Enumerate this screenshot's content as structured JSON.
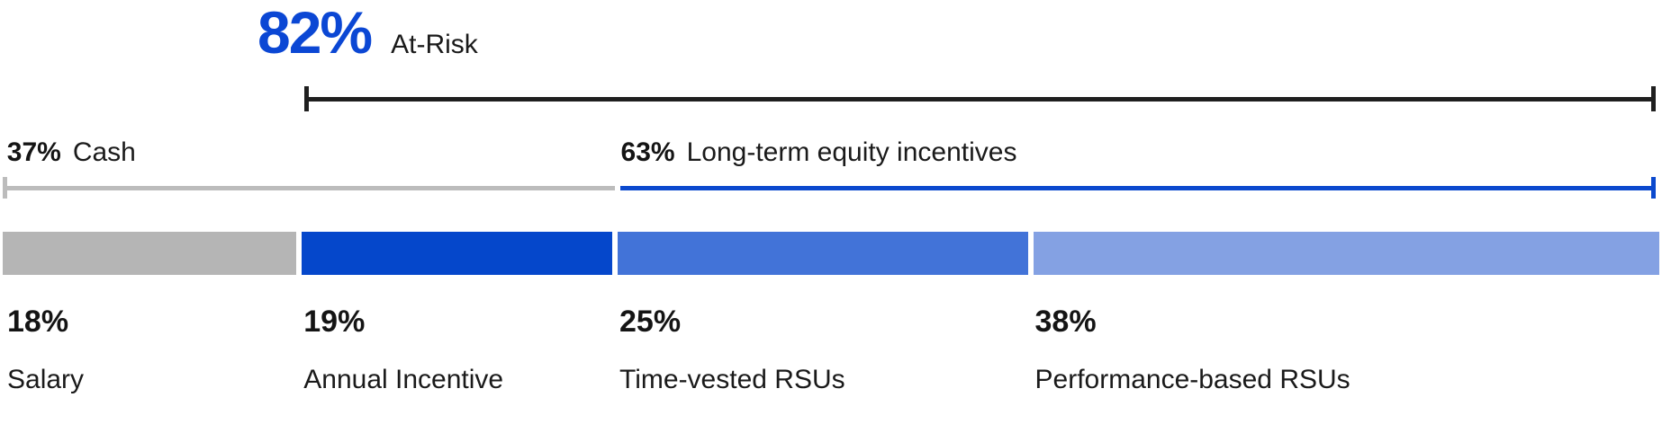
{
  "chart_data": {
    "type": "stacked-bar-horizontal",
    "unit": "%",
    "title": "",
    "orientation": "horizontal",
    "total": 100,
    "segments": [
      {
        "label": "Salary",
        "value": 18,
        "value_label": "18%",
        "color": "#B5B5B5"
      },
      {
        "label": "Annual Incentive",
        "value": 19,
        "value_label": "19%",
        "color": "#0547CB"
      },
      {
        "label": "Time-vested RSUs",
        "value": 25,
        "value_label": "25%",
        "color": "#4273D8"
      },
      {
        "label": "Performance-based RSUs",
        "value": 38,
        "value_label": "38%",
        "color": "#84A1E3"
      }
    ],
    "brackets": [
      {
        "label": "At-Risk",
        "value": 82,
        "value_label": "82%",
        "start_pct": 18.3,
        "end_pct": 99.6,
        "color": "#1F1F1F",
        "caps": "both"
      },
      {
        "label": "Cash",
        "value": 37,
        "value_label": "37%",
        "start_pct": 0.15,
        "end_pct": 37.0,
        "color": "#BCBCBC",
        "caps": "left"
      },
      {
        "label": "Long-term equity incentives",
        "value": 63,
        "value_label": "63%",
        "start_pct": 37.3,
        "end_pct": 99.6,
        "color": "#0B49CE",
        "caps": "right"
      }
    ],
    "colors": {
      "accent_blue_text": "#0B47D4",
      "text_black": "#1A1A1A",
      "background": "#FFFFFF"
    },
    "layout_hints": {
      "legend": "none",
      "axes": "none",
      "grid": "off"
    }
  }
}
